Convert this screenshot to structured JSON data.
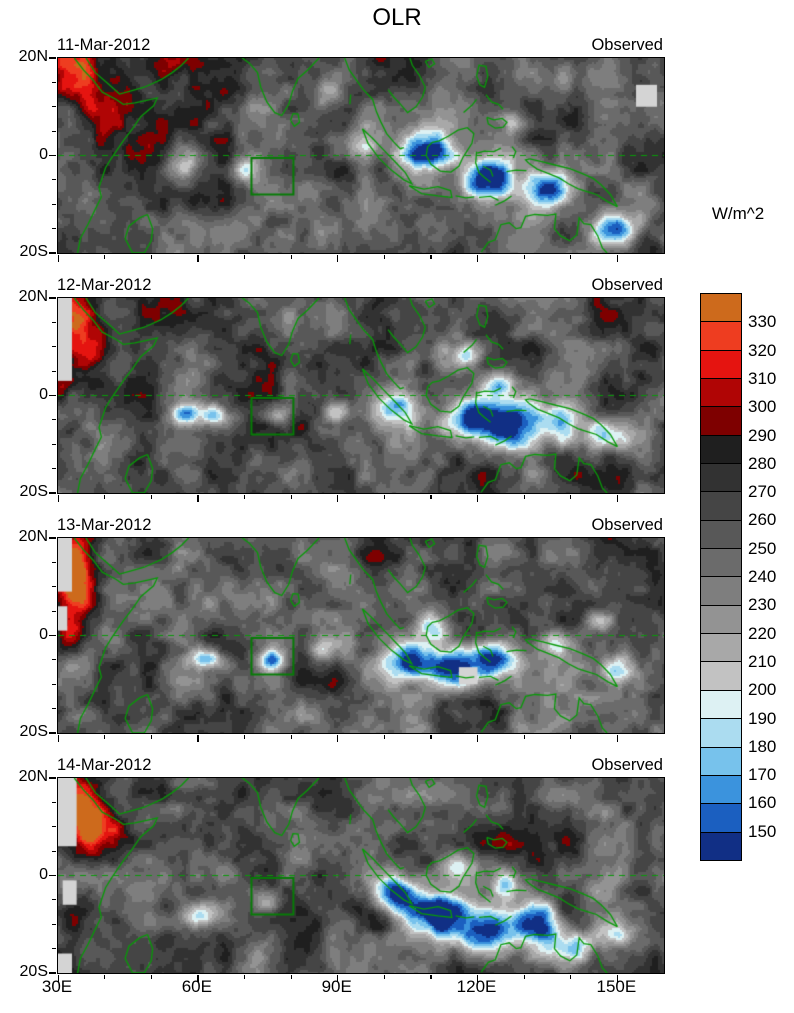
{
  "chart_data": {
    "type": "heatmap",
    "title": "OLR",
    "units": "W/m^2",
    "lon_range": [
      30,
      160
    ],
    "lat_range": [
      -20,
      20
    ],
    "x_tick_labels": [
      {
        "label": "30E",
        "lon": 30
      },
      {
        "label": "60E",
        "lon": 60
      },
      {
        "label": "90E",
        "lon": 90
      },
      {
        "label": "120E",
        "lon": 120
      },
      {
        "label": "150E",
        "lon": 150
      }
    ],
    "y_tick_labels": [
      {
        "label": "20N",
        "lat": 20
      },
      {
        "label": "0",
        "lat": 0
      },
      {
        "label": "20S",
        "lat": -20
      }
    ],
    "levels_w_per_m2": [
      150,
      160,
      170,
      180,
      190,
      200,
      210,
      220,
      230,
      240,
      250,
      260,
      270,
      280,
      290,
      300,
      310,
      320,
      330
    ],
    "colorbar": {
      "unit_label": "W/m^2",
      "boundary_labels": [
        "330",
        "320",
        "310",
        "300",
        "290",
        "280",
        "270",
        "260",
        "250",
        "240",
        "230",
        "220",
        "210",
        "200",
        "190",
        "180",
        "170",
        "160",
        "150"
      ],
      "colors_top_to_bottom": [
        "#cd6a1c",
        "#ee3d20",
        "#e51410",
        "#b00505",
        "#7e0000",
        "#1f1f1f",
        "#323232",
        "#454545",
        "#585858",
        "#6b6b6b",
        "#7e7e7e",
        "#939393",
        "#a8a8a8",
        "#c2c2c2",
        "#ddf1f3",
        "#abdcf0",
        "#77c2ec",
        "#3b93dd",
        "#1b5fc0",
        "#112f85"
      ]
    },
    "base_olr": 260,
    "equator_lat": 0,
    "coastline_color": "#089a08",
    "highlight_box": {
      "lon_min": 71.5,
      "lon_max": 80.5,
      "lat_min": -8,
      "lat_max": -0.5
    },
    "panels": [
      {
        "date": "11-Mar-2012",
        "source": "Observed",
        "seed": 7,
        "features": [
          {
            "lon": 33,
            "lat": 17,
            "amp": 82,
            "rlon": 6,
            "rlat": 6
          },
          {
            "lon": 40,
            "lat": 9,
            "amp": 48,
            "rlon": 6,
            "rlat": 6
          },
          {
            "lon": 55,
            "lat": 19,
            "amp": 32,
            "rlon": 6,
            "rlat": 4
          },
          {
            "lon": 57,
            "lat": -3,
            "amp": -55,
            "rlon": 3,
            "rlat": 2.5
          },
          {
            "lon": 70,
            "lat": -3,
            "amp": -78,
            "rlon": 3,
            "rlat": 2.5
          },
          {
            "lon": 96,
            "lat": 2,
            "amp": -78,
            "rlon": 5,
            "rlat": 3.5
          },
          {
            "lon": 110,
            "lat": 1,
            "amp": -118,
            "rlon": 6,
            "rlat": 4.5
          },
          {
            "lon": 122,
            "lat": -5,
            "amp": -128,
            "rlon": 6,
            "rlat": 4.5
          },
          {
            "lon": 136,
            "lat": -7,
            "amp": -108,
            "rlon": 5,
            "rlat": 4
          },
          {
            "lon": 150,
            "lat": -15,
            "amp": -88,
            "rlon": 5,
            "rlat": 3.5
          },
          {
            "lon": 127,
            "lat": 7,
            "amp": -62,
            "rlon": 3,
            "rlat": 2.5
          },
          {
            "lon": 88,
            "lat": 13,
            "amp": -45,
            "rlon": 3,
            "rlat": 2.5
          }
        ],
        "missing": [
          {
            "lon_min": 154,
            "lon_max": 158.5,
            "lat_min": 10,
            "lat_max": 14.5
          }
        ]
      },
      {
        "date": "12-Mar-2012",
        "source": "Observed",
        "seed": 19,
        "features": [
          {
            "lon": 34,
            "lat": 16,
            "amp": 78,
            "rlon": 6,
            "rlat": 6
          },
          {
            "lon": 37,
            "lat": 9,
            "amp": 62,
            "rlon": 4,
            "rlat": 4
          },
          {
            "lon": 31,
            "lat": 3,
            "amp": 40,
            "rlon": 3,
            "rlat": 4
          },
          {
            "lon": 57,
            "lat": -4,
            "amp": -82,
            "rlon": 3,
            "rlat": 2.3
          },
          {
            "lon": 64,
            "lat": -4,
            "amp": -86,
            "rlon": 3.5,
            "rlat": 2.4
          },
          {
            "lon": 77,
            "lat": -4,
            "amp": -56,
            "rlon": 3,
            "rlat": 2.4
          },
          {
            "lon": 90,
            "lat": -3,
            "amp": -56,
            "rlon": 3,
            "rlat": 2.4
          },
          {
            "lon": 103,
            "lat": -2,
            "amp": -100,
            "rlon": 5,
            "rlat": 4
          },
          {
            "lon": 118,
            "lat": -4,
            "amp": -122,
            "rlon": 6,
            "rlat": 5
          },
          {
            "lon": 127,
            "lat": -6,
            "amp": -122,
            "rlon": 6,
            "rlat": 5
          },
          {
            "lon": 124,
            "lat": 2,
            "amp": -82,
            "rlon": 4,
            "rlat": 3
          },
          {
            "lon": 138,
            "lat": -6,
            "amp": -92,
            "rlon": 5,
            "rlat": 4
          },
          {
            "lon": 148,
            "lat": -8,
            "amp": -62,
            "rlon": 4,
            "rlat": 3
          },
          {
            "lon": 118,
            "lat": 8,
            "amp": -56,
            "rlon": 3,
            "rlat": 2.5
          }
        ],
        "missing": [
          {
            "lon_min": 30,
            "lon_max": 33,
            "lat_min": 3,
            "lat_max": 20
          }
        ]
      },
      {
        "date": "13-Mar-2012",
        "source": "Observed",
        "seed": 31,
        "features": [
          {
            "lon": 33,
            "lat": 15,
            "amp": 72,
            "rlon": 5,
            "rlat": 6
          },
          {
            "lon": 35,
            "lat": 8,
            "amp": 66,
            "rlon": 4,
            "rlat": 5
          },
          {
            "lon": 32,
            "lat": 0,
            "amp": 36,
            "rlon": 3,
            "rlat": 3
          },
          {
            "lon": 62,
            "lat": -5,
            "amp": -76,
            "rlon": 3.5,
            "rlat": 2
          },
          {
            "lon": 76,
            "lat": -5,
            "amp": -102,
            "rlon": 3,
            "rlat": 2.5
          },
          {
            "lon": 88,
            "lat": -3,
            "amp": -52,
            "rlon": 4,
            "rlat": 2.5
          },
          {
            "lon": 105,
            "lat": -5,
            "amp": -112,
            "rlon": 6,
            "rlat": 4.5
          },
          {
            "lon": 115,
            "lat": -7,
            "amp": -122,
            "rlon": 6,
            "rlat": 4.5
          },
          {
            "lon": 124,
            "lat": -5,
            "amp": -116,
            "rlon": 5,
            "rlat": 4
          },
          {
            "lon": 111,
            "lat": 2,
            "amp": -72,
            "rlon": 4,
            "rlat": 3
          },
          {
            "lon": 137,
            "lat": -2,
            "amp": -82,
            "rlon": 4,
            "rlat": 3
          },
          {
            "lon": 150,
            "lat": -7,
            "amp": -72,
            "rlon": 4,
            "rlat": 3
          },
          {
            "lon": 146,
            "lat": 3,
            "amp": -42,
            "rlon": 3,
            "rlat": 2
          }
        ],
        "missing": [
          {
            "lon_min": 30,
            "lon_max": 33,
            "lat_min": 9,
            "lat_max": 20
          },
          {
            "lon_min": 30,
            "lon_max": 32,
            "lat_min": 1,
            "lat_max": 6
          },
          {
            "lon_min": 116,
            "lon_max": 120,
            "lat_min": -10,
            "lat_max": -6.5
          }
        ]
      },
      {
        "date": "14-Mar-2012",
        "source": "Observed",
        "seed": 47,
        "features": [
          {
            "lon": 34,
            "lat": 16,
            "amp": 78,
            "rlon": 6,
            "rlat": 6
          },
          {
            "lon": 38,
            "lat": 9,
            "amp": 58,
            "rlon": 5,
            "rlat": 5
          },
          {
            "lon": 50,
            "lat": 18,
            "amp": 36,
            "rlon": 4,
            "rlat": 3
          },
          {
            "lon": 60,
            "lat": -8,
            "amp": -86,
            "rlon": 4,
            "rlat": 2.5
          },
          {
            "lon": 75,
            "lat": -5,
            "amp": -56,
            "rlon": 3,
            "rlat": 2.5
          },
          {
            "lon": 103,
            "lat": -4,
            "amp": -112,
            "rlon": 5,
            "rlat": 4
          },
          {
            "lon": 112,
            "lat": -8,
            "amp": -126,
            "rlon": 6,
            "rlat": 5
          },
          {
            "lon": 122,
            "lat": -12,
            "amp": -116,
            "rlon": 6,
            "rlat": 4.5
          },
          {
            "lon": 133,
            "lat": -10,
            "amp": -112,
            "rlon": 5,
            "rlat": 4.5
          },
          {
            "lon": 140,
            "lat": -15,
            "amp": -92,
            "rlon": 5,
            "rlat": 3.5
          },
          {
            "lon": 116,
            "lat": 1,
            "amp": -76,
            "rlon": 4,
            "rlat": 3
          },
          {
            "lon": 127,
            "lat": -2,
            "amp": -72,
            "rlon": 4,
            "rlat": 3
          },
          {
            "lon": 150,
            "lat": -12,
            "amp": -62,
            "rlon": 4,
            "rlat": 3
          }
        ],
        "missing": [
          {
            "lon_min": 30,
            "lon_max": 34,
            "lat_min": 6,
            "lat_max": 20
          },
          {
            "lon_min": 31,
            "lon_max": 34,
            "lat_min": -6,
            "lat_max": -1
          },
          {
            "lon_min": 30,
            "lon_max": 33,
            "lat_min": -20,
            "lat_max": -16
          }
        ]
      }
    ]
  }
}
